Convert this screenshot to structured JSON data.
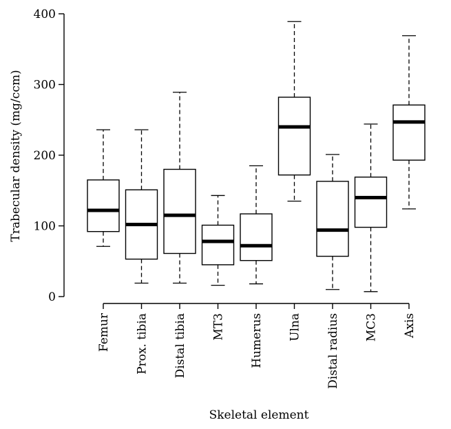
{
  "chart_data": {
    "type": "boxplot",
    "xlabel": "Skeletal element",
    "ylabel": "Trabecular density (mg/ccm)",
    "ylim": [
      0,
      400
    ],
    "yticks": [
      0,
      100,
      200,
      300,
      400
    ],
    "grid": false,
    "categories": [
      "Femur",
      "Prox. tibia",
      "Distal tibia",
      "MT3",
      "Humerus",
      "Ulna",
      "Distal radius",
      "MC3",
      "Axis"
    ],
    "boxes": [
      {
        "name": "Femur",
        "min": 71,
        "q1": 92,
        "median": 122,
        "q3": 165,
        "max": 236
      },
      {
        "name": "Prox. tibia",
        "min": 19,
        "q1": 53,
        "median": 102,
        "q3": 151,
        "max": 236
      },
      {
        "name": "Distal tibia",
        "min": 19,
        "q1": 61,
        "median": 115,
        "q3": 180,
        "max": 289
      },
      {
        "name": "MT3",
        "min": 16,
        "q1": 45,
        "median": 78,
        "q3": 101,
        "max": 143
      },
      {
        "name": "Humerus",
        "min": 18,
        "q1": 51,
        "median": 72,
        "q3": 117,
        "max": 185
      },
      {
        "name": "Ulna",
        "min": 135,
        "q1": 172,
        "median": 240,
        "q3": 282,
        "max": 389
      },
      {
        "name": "Distal radius",
        "min": 10,
        "q1": 57,
        "median": 94,
        "q3": 163,
        "max": 201
      },
      {
        "name": "MC3",
        "min": 7,
        "q1": 98,
        "median": 140,
        "q3": 169,
        "max": 244
      },
      {
        "name": "Axis",
        "min": 124,
        "q1": 193,
        "median": 247,
        "q3": 271,
        "max": 369
      }
    ]
  }
}
